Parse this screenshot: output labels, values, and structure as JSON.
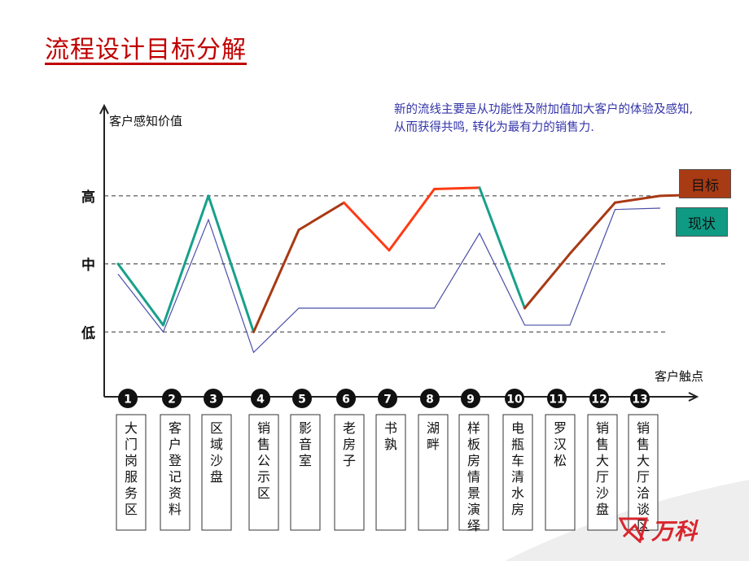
{
  "title": "流程设计目标分解",
  "note": "新的流线主要是从功能性及附加值加大客户的体验及感知, 从而获得共鸣, 转化为最有力的销售力.",
  "legend": {
    "target": "目标",
    "current": "现状"
  },
  "logo": "万科",
  "colors": {
    "title": "#c00000",
    "note": "#3333aa",
    "target": "#a83a14",
    "target_highlight": "#ff3b14",
    "improve_segment": "#17a08a",
    "current_line": "#4b4fa8",
    "legend_target": "#a83a14",
    "legend_current": "#0f9a84",
    "markers": "#111111"
  },
  "chart_data": {
    "type": "line",
    "ylabel": "客户感知价值",
    "xlabel": "客户触点",
    "y_levels": [
      "低",
      "中",
      "高"
    ],
    "ylim": [
      0.6,
      3.6
    ],
    "gridlines": [
      1,
      2,
      3
    ],
    "categories": [
      "大门岗服务区",
      "客户登记资料",
      "区域沙盘",
      "销售公示区",
      "影音室",
      "老房子",
      "书孰",
      "湖畔",
      "样板房情景演绎",
      "电瓶车 清水房",
      "罗汉松",
      "销售大厅 沙盘",
      "销售大厅洽谈区"
    ],
    "touchpoint_numbers": [
      "1",
      "2",
      "3",
      "4",
      "5",
      "6",
      "7",
      "8",
      "9",
      "10",
      "11",
      "12",
      "13"
    ],
    "series": [
      {
        "name": "目标",
        "values": [
          2.0,
          1.1,
          3.0,
          1.0,
          2.5,
          2.9,
          2.2,
          3.1,
          3.12,
          1.35,
          2.15,
          2.9,
          3.0
        ]
      },
      {
        "name": "现状",
        "values": [
          1.85,
          1.0,
          2.65,
          0.7,
          1.35,
          1.35,
          1.35,
          1.35,
          2.45,
          1.1,
          1.1,
          2.8,
          2.82
        ]
      }
    ],
    "legend_position": "right"
  }
}
